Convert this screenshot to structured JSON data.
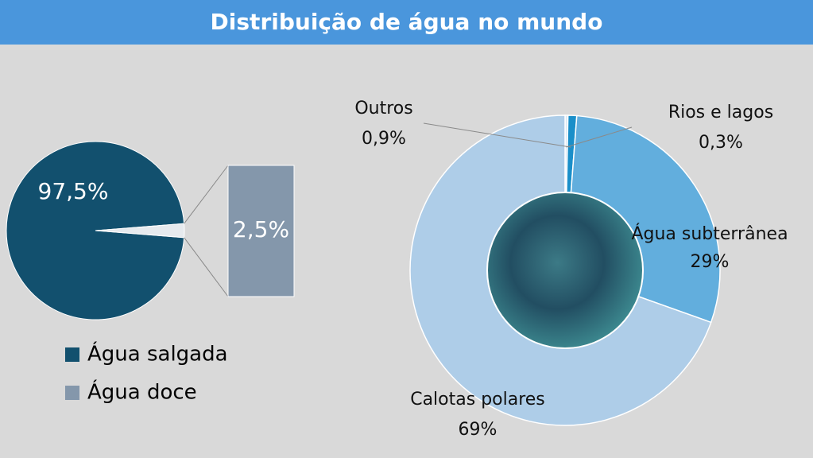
{
  "header": {
    "title": "Distribuição de água no mundo"
  },
  "chart_data": [
    {
      "type": "pie-of-bar",
      "categories": [
        "Água salgada",
        "Água doce"
      ],
      "values": [
        97.5,
        2.5
      ],
      "value_labels": [
        "97,5%",
        "2,5%"
      ],
      "colors": [
        "#12506e",
        "#8497ab"
      ],
      "legend": "bottom"
    },
    {
      "type": "donut",
      "categories": [
        "Rios e lagos",
        "Outros",
        "Água subterrânea",
        "Calotas polares"
      ],
      "values": [
        0.3,
        0.9,
        29,
        69
      ],
      "value_labels": [
        "0,3%",
        "0,9%",
        "29%",
        "69%"
      ],
      "colors": [
        "#dce8f3",
        "#1a8fc9",
        "#62aedd",
        "#aecde8"
      ]
    }
  ]
}
